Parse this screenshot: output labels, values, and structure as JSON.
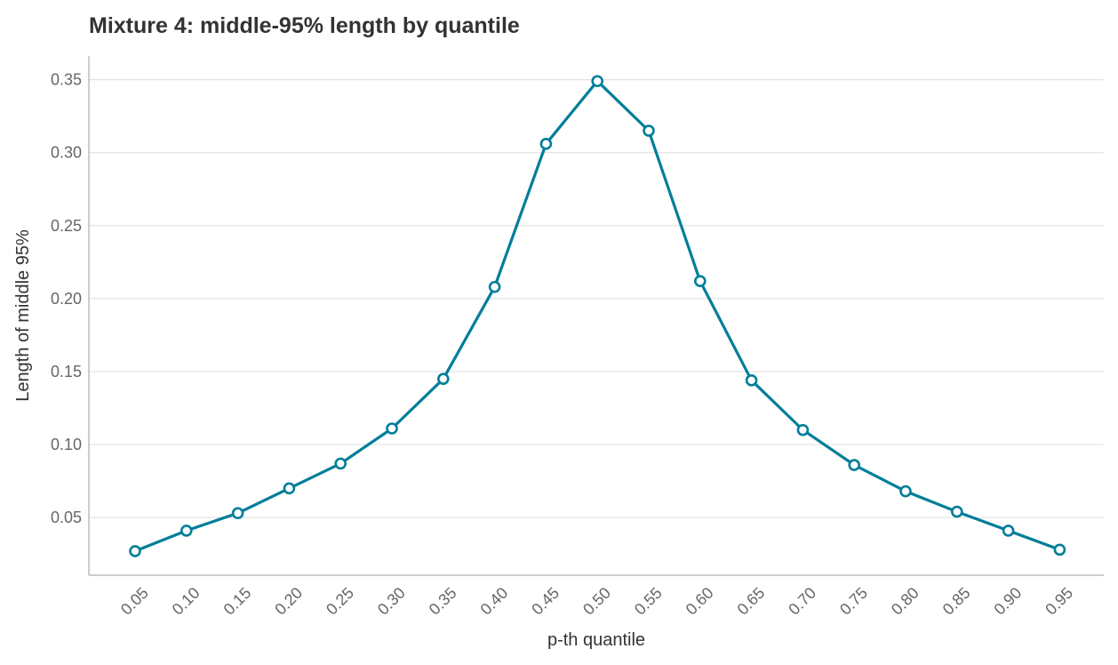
{
  "chart_data": {
    "type": "line",
    "title": "Mixture 4: middle-95% length by quantile",
    "xlabel": "p-th quantile",
    "ylabel": "Length of middle 95%",
    "categories": [
      "0.05",
      "0.10",
      "0.15",
      "0.20",
      "0.25",
      "0.30",
      "0.35",
      "0.40",
      "0.45",
      "0.50",
      "0.55",
      "0.60",
      "0.65",
      "0.70",
      "0.75",
      "0.80",
      "0.85",
      "0.90",
      "0.95"
    ],
    "series": [
      {
        "values": [
          0.027,
          0.041,
          0.053,
          0.07,
          0.087,
          0.111,
          0.145,
          0.208,
          0.306,
          0.349,
          0.315,
          0.212,
          0.144,
          0.11,
          0.086,
          0.068,
          0.054,
          0.041,
          0.028
        ]
      }
    ],
    "ylim": [
      0.0105,
      0.3662
    ],
    "yticks": [
      0.05,
      0.1,
      0.15,
      0.2,
      0.25,
      0.3,
      0.35
    ],
    "ytick_labels": [
      "0.05",
      "0.10",
      "0.15",
      "0.20",
      "0.25",
      "0.30",
      "0.35"
    ],
    "grid": "horizontal",
    "colors": {
      "line": "#007e99",
      "marker_fill": "#ffffff",
      "title": "#333333",
      "ticks": "#666666",
      "grid": "#e3e3e3",
      "axis": "#bdbdbd"
    }
  }
}
